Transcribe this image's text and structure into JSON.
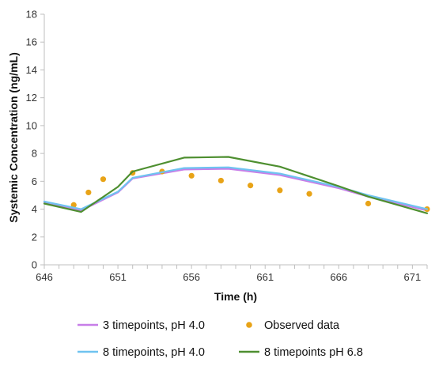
{
  "chart_data": {
    "type": "line",
    "xlabel": "Time (h)",
    "ylabel": "Systemic Concentration (ng/mL)",
    "xlim": [
      646,
      672
    ],
    "ylim": [
      0,
      18
    ],
    "x_ticks": [
      646,
      651,
      656,
      661,
      666,
      671
    ],
    "y_ticks": [
      0,
      2,
      4,
      6,
      8,
      10,
      12,
      14,
      16,
      18
    ],
    "x_tick_labels": [
      "646",
      "651",
      "656",
      "661",
      "666",
      "671"
    ],
    "y_tick_labels": [
      "0",
      "2",
      "4",
      "6",
      "8",
      "10",
      "12",
      "14",
      "16",
      "18"
    ],
    "grid": false,
    "legend_position": "bottom",
    "series": [
      {
        "name": "3 timepoints, pH 4.0",
        "kind": "line",
        "color": "#c77ee8",
        "x": [
          646,
          648.5,
          651,
          652,
          655.5,
          658.5,
          662,
          666,
          668,
          672
        ],
        "y": [
          4.5,
          3.9,
          5.2,
          6.2,
          6.85,
          6.9,
          6.45,
          5.5,
          4.9,
          3.9
        ]
      },
      {
        "name": "Observed data",
        "kind": "scatter",
        "color": "#e8a317",
        "x": [
          648,
          649,
          650,
          652,
          654,
          656,
          658,
          660,
          662,
          664,
          668,
          672
        ],
        "y": [
          4.3,
          5.2,
          6.15,
          6.6,
          6.7,
          6.4,
          6.05,
          5.7,
          5.35,
          5.1,
          4.4,
          4.0
        ]
      },
      {
        "name": "8 timepoints, pH 4.0",
        "kind": "line",
        "color": "#6fc3f0",
        "x": [
          646,
          648.5,
          651,
          652,
          655.5,
          658.5,
          662,
          666,
          668,
          672
        ],
        "y": [
          4.55,
          4.0,
          5.25,
          6.25,
          6.95,
          7.0,
          6.55,
          5.6,
          5.0,
          4.0
        ]
      },
      {
        "name": "8 timepoints pH 6.8",
        "kind": "line",
        "color": "#4e8f30",
        "x": [
          646,
          648.5,
          651,
          652,
          655.5,
          658.5,
          662,
          666,
          668,
          672
        ],
        "y": [
          4.4,
          3.8,
          5.6,
          6.7,
          7.7,
          7.75,
          7.05,
          5.65,
          4.9,
          3.7
        ]
      }
    ]
  }
}
